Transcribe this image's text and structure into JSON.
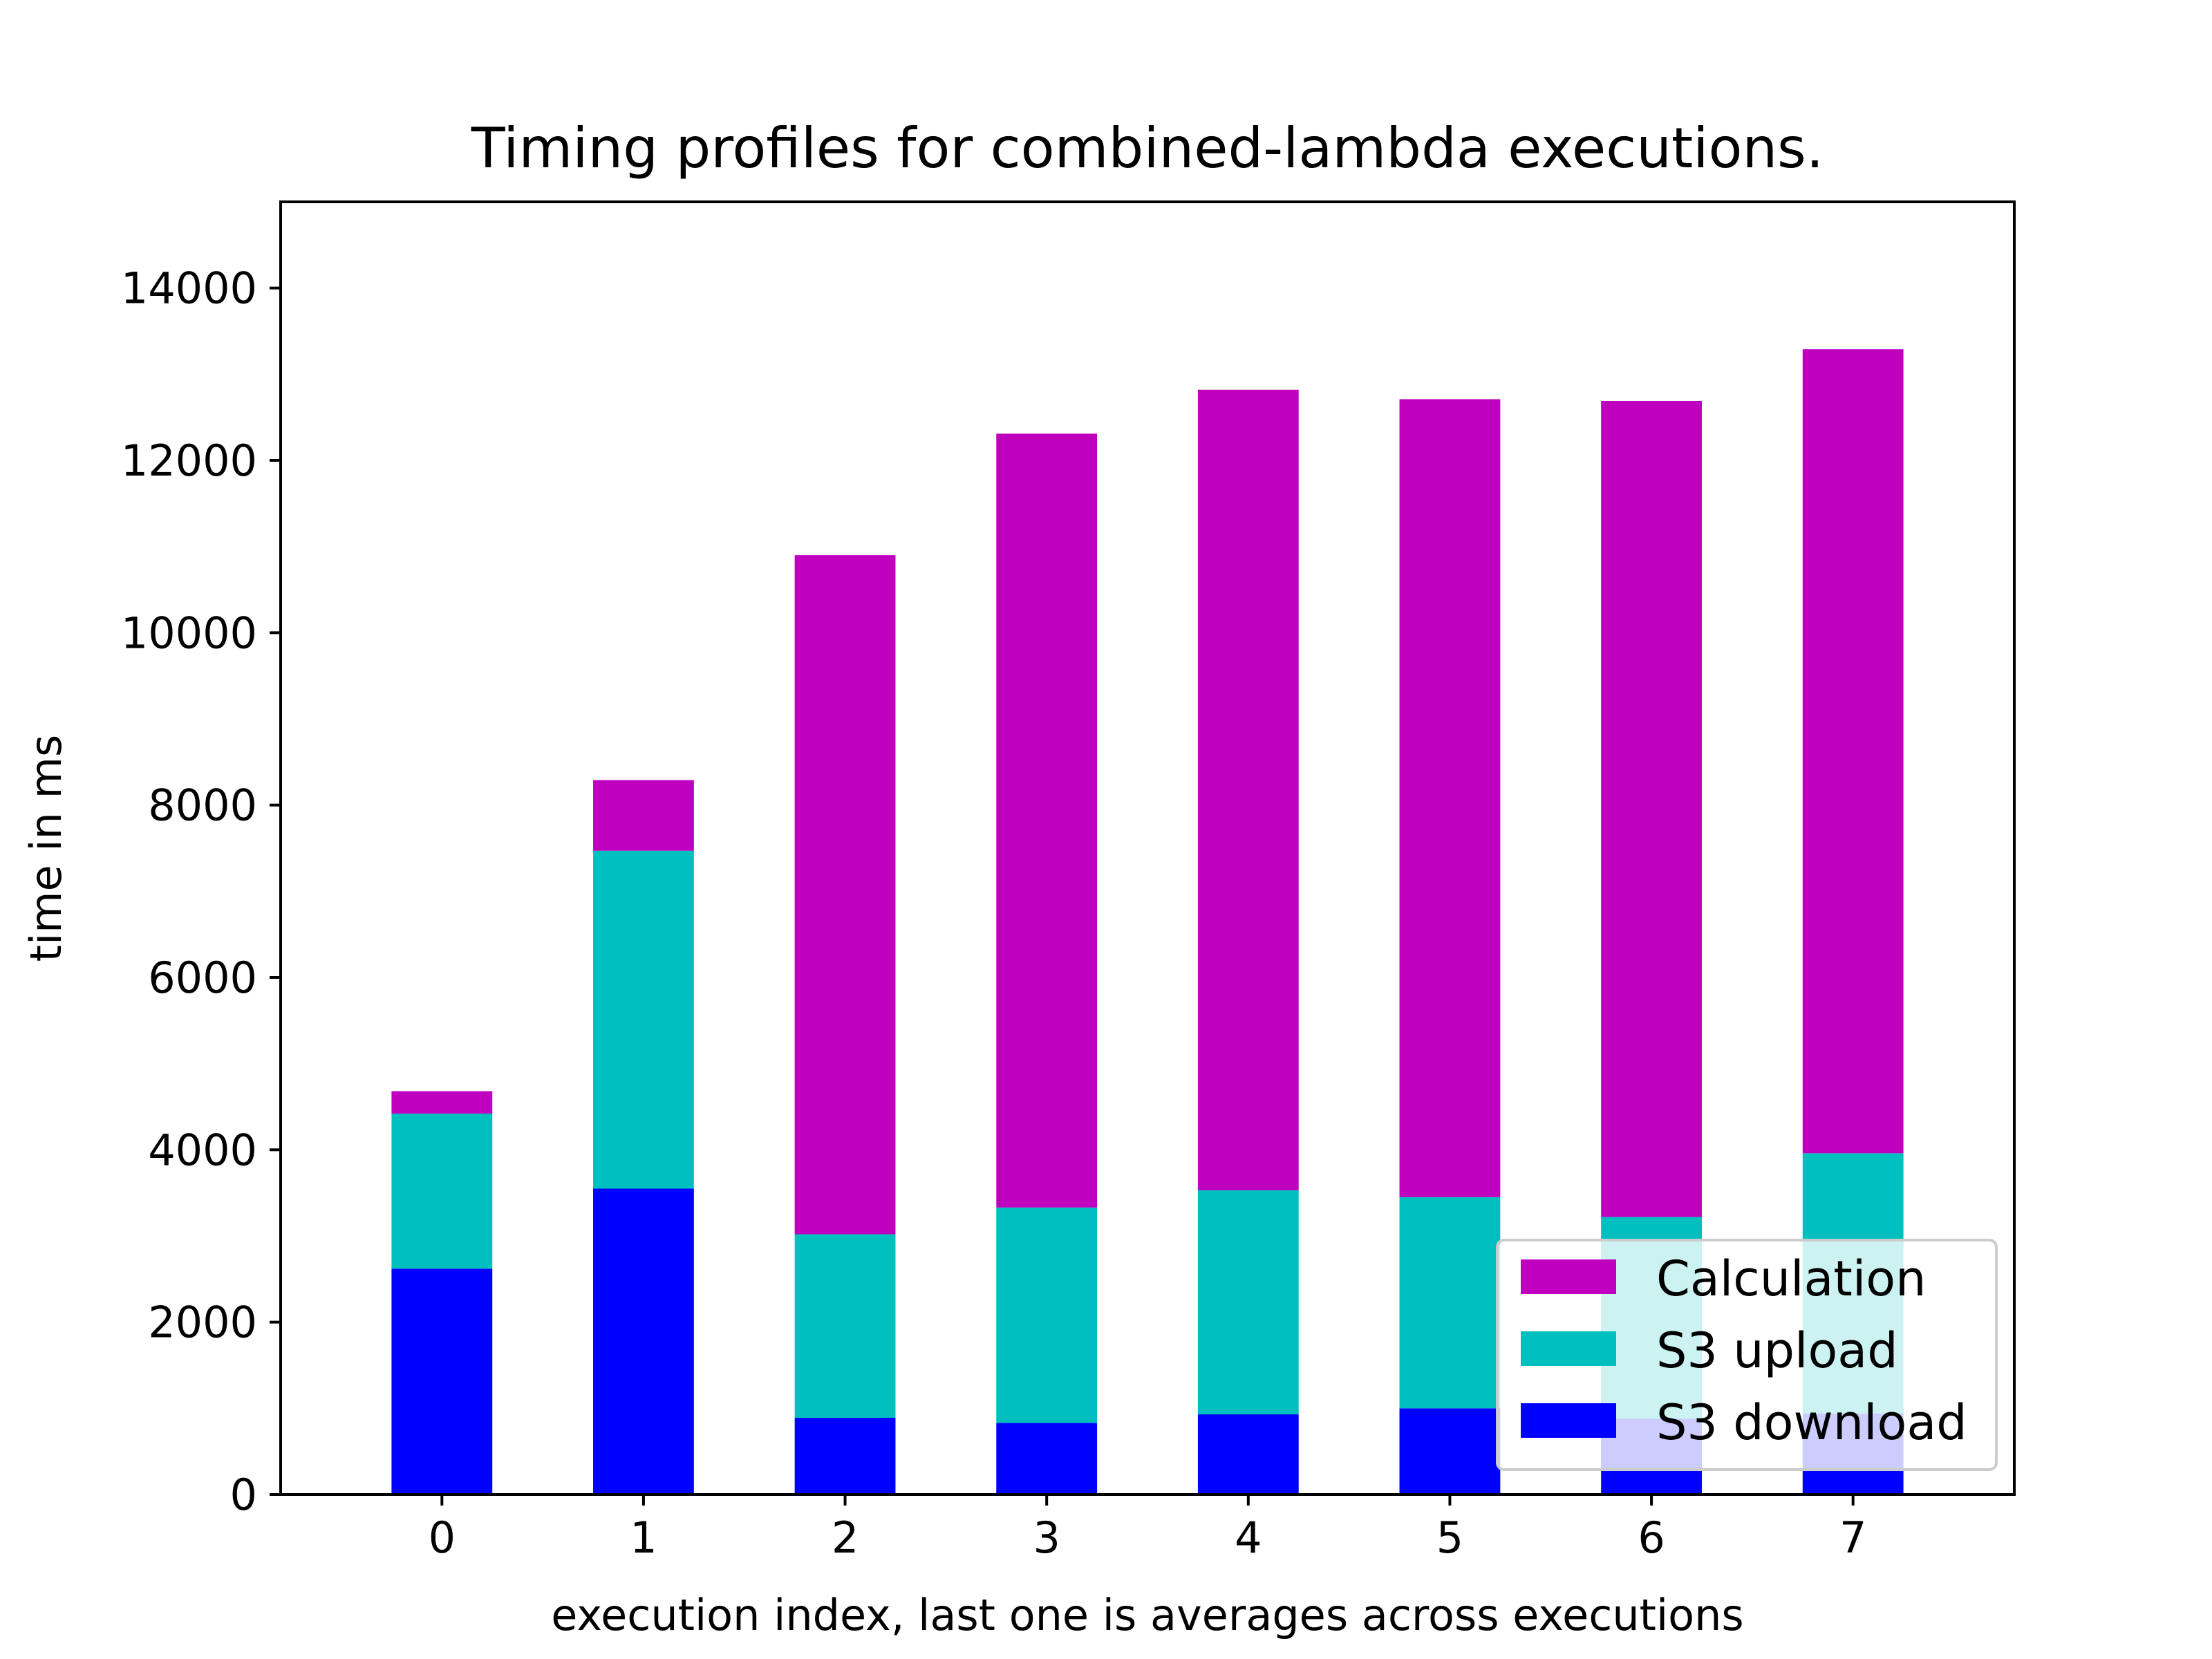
{
  "chart_data": {
    "type": "bar",
    "stacked": true,
    "title": "Timing profiles for combined-lambda executions.",
    "xlabel": "execution index, last one is averages across executions",
    "ylabel": "time in ms",
    "categories": [
      "0",
      "1",
      "2",
      "3",
      "4",
      "5",
      "6",
      "7"
    ],
    "ylim": [
      0,
      15000
    ],
    "yticks": [
      0,
      2000,
      4000,
      6000,
      8000,
      10000,
      12000,
      14000
    ],
    "grid": false,
    "legend_position": "lower-right",
    "series": [
      {
        "name": "S3 download",
        "color": "#0000ff",
        "values": [
          2620,
          3550,
          890,
          830,
          930,
          1000,
          880,
          940
        ]
      },
      {
        "name": "S3 upload",
        "color": "#00bfbf",
        "values": [
          1800,
          3920,
          2130,
          2500,
          2600,
          2450,
          2340,
          3020
        ]
      },
      {
        "name": "Calculation",
        "color": "#bf00bf",
        "values": [
          260,
          820,
          7880,
          8980,
          9290,
          9260,
          9470,
          9330
        ]
      }
    ],
    "legend_order": [
      "Calculation",
      "S3 upload",
      "S3 download"
    ]
  }
}
